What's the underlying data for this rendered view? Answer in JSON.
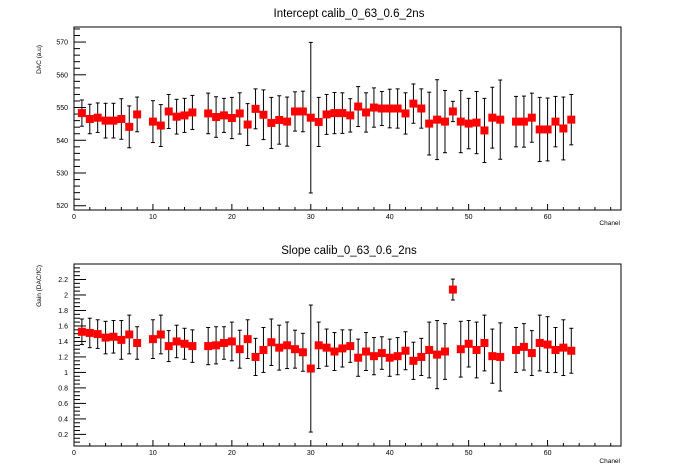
{
  "chart_data": [
    {
      "type": "scatter",
      "title": "Intercept calib_0_63_0.6_2ns",
      "xlabel": "Chanel",
      "ylabel": "DAC (a.u)",
      "xlim": [
        0,
        69.3
      ],
      "ylim": [
        518.7,
        574.6
      ],
      "xticks": [
        0,
        10,
        20,
        30,
        40,
        50,
        60
      ],
      "yticks": [
        520,
        530,
        540,
        550,
        560,
        570
      ],
      "grid": false,
      "marker_color": "#ff0000",
      "error_bar_color": "#000000",
      "x": [
        1,
        2,
        3,
        4,
        5,
        6,
        7,
        8,
        10,
        11,
        12,
        13,
        14,
        15,
        17,
        18,
        19,
        20,
        21,
        22,
        23,
        24,
        25,
        26,
        27,
        28,
        29,
        30,
        31,
        32,
        33,
        34,
        35,
        36,
        37,
        38,
        39,
        40,
        41,
        42,
        43,
        44,
        45,
        46,
        47,
        48,
        49,
        50,
        51,
        52,
        53,
        54,
        56,
        57,
        58,
        59,
        60,
        61,
        62,
        63
      ],
      "y": [
        548.3,
        546.5,
        546.9,
        546.0,
        546.0,
        546.5,
        544.1,
        547.9,
        545.7,
        544.5,
        548.8,
        547.2,
        547.6,
        548.5,
        548.2,
        547.1,
        547.6,
        546.8,
        548.2,
        544.8,
        549.6,
        547.8,
        545.3,
        546.2,
        545.7,
        548.8,
        548.8,
        546.9,
        545.6,
        547.9,
        548.3,
        548.3,
        547.6,
        550.3,
        548.5,
        550.0,
        549.7,
        549.7,
        549.7,
        548.2,
        551.2,
        549.7,
        545.1,
        546.3,
        545.7,
        548.8,
        545.7,
        545.1,
        545.4,
        543.0,
        546.9,
        546.3,
        545.7,
        545.7,
        546.9,
        543.3,
        543.3,
        545.7,
        543.6,
        546.3
      ],
      "yerr": [
        4.0,
        4.5,
        4.5,
        5.3,
        5.3,
        6.2,
        6.4,
        5.3,
        6.4,
        6.4,
        5.2,
        5.3,
        5.2,
        5.2,
        6.2,
        6.2,
        5.2,
        6.3,
        6.3,
        6.4,
        6.1,
        7.6,
        7.8,
        7.4,
        7.5,
        6.0,
        6.2,
        23.0,
        7.5,
        6.1,
        6.3,
        6.2,
        5.1,
        6.1,
        6.0,
        6.0,
        5.2,
        5.9,
        6.0,
        6.3,
        6.0,
        6.0,
        9.6,
        12.2,
        9.5,
        3.1,
        9.5,
        7.7,
        9.5,
        9.8,
        9.3,
        12.1,
        7.7,
        7.8,
        7.5,
        9.8,
        9.6,
        7.7,
        9.6,
        7.7
      ]
    },
    {
      "type": "scatter",
      "title": "Slope calib_0_63_0.6_2ns",
      "xlabel": "Chanel",
      "ylabel": "Gain (DAC/fC)",
      "xlim": [
        0,
        69.3
      ],
      "ylim": [
        0.05,
        2.4
      ],
      "xticks": [
        0,
        10,
        20,
        30,
        40,
        50,
        60
      ],
      "yticks": [
        "0.2",
        "0.4",
        "0.6",
        "0.8",
        "1",
        "1.2",
        "1.4",
        "1.6",
        "1.8",
        "2",
        "2.2"
      ],
      "grid": false,
      "marker_color": "#ff0000",
      "error_bar_color": "#000000",
      "x": [
        1,
        2,
        3,
        4,
        5,
        6,
        7,
        8,
        10,
        11,
        12,
        13,
        14,
        15,
        17,
        18,
        19,
        20,
        21,
        22,
        23,
        24,
        25,
        26,
        27,
        28,
        29,
        30,
        31,
        32,
        33,
        34,
        35,
        36,
        37,
        38,
        39,
        40,
        41,
        42,
        43,
        44,
        45,
        46,
        47,
        48,
        49,
        50,
        51,
        52,
        53,
        54,
        56,
        57,
        58,
        59,
        60,
        61,
        62,
        63
      ],
      "y": [
        1.525,
        1.51,
        1.495,
        1.45,
        1.46,
        1.42,
        1.49,
        1.38,
        1.43,
        1.49,
        1.34,
        1.4,
        1.37,
        1.34,
        1.34,
        1.35,
        1.38,
        1.4,
        1.3,
        1.43,
        1.2,
        1.29,
        1.39,
        1.32,
        1.35,
        1.3,
        1.26,
        1.05,
        1.35,
        1.32,
        1.27,
        1.31,
        1.34,
        1.19,
        1.27,
        1.21,
        1.25,
        1.19,
        1.21,
        1.28,
        1.15,
        1.2,
        1.29,
        1.23,
        1.27,
        2.07,
        1.3,
        1.37,
        1.29,
        1.38,
        1.21,
        1.2,
        1.29,
        1.33,
        1.25,
        1.38,
        1.36,
        1.29,
        1.32,
        1.28
      ],
      "yerr": [
        0.165,
        0.19,
        0.185,
        0.21,
        0.21,
        0.25,
        0.25,
        0.21,
        0.25,
        0.25,
        0.2,
        0.21,
        0.2,
        0.21,
        0.24,
        0.24,
        0.21,
        0.25,
        0.245,
        0.25,
        0.24,
        0.29,
        0.3,
        0.29,
        0.3,
        0.245,
        0.245,
        0.82,
        0.3,
        0.24,
        0.245,
        0.24,
        0.21,
        0.24,
        0.245,
        0.24,
        0.21,
        0.24,
        0.24,
        0.245,
        0.24,
        0.24,
        0.36,
        0.44,
        0.36,
        0.135,
        0.36,
        0.3,
        0.36,
        0.36,
        0.35,
        0.44,
        0.29,
        0.3,
        0.29,
        0.36,
        0.36,
        0.29,
        0.36,
        0.29
      ]
    }
  ]
}
